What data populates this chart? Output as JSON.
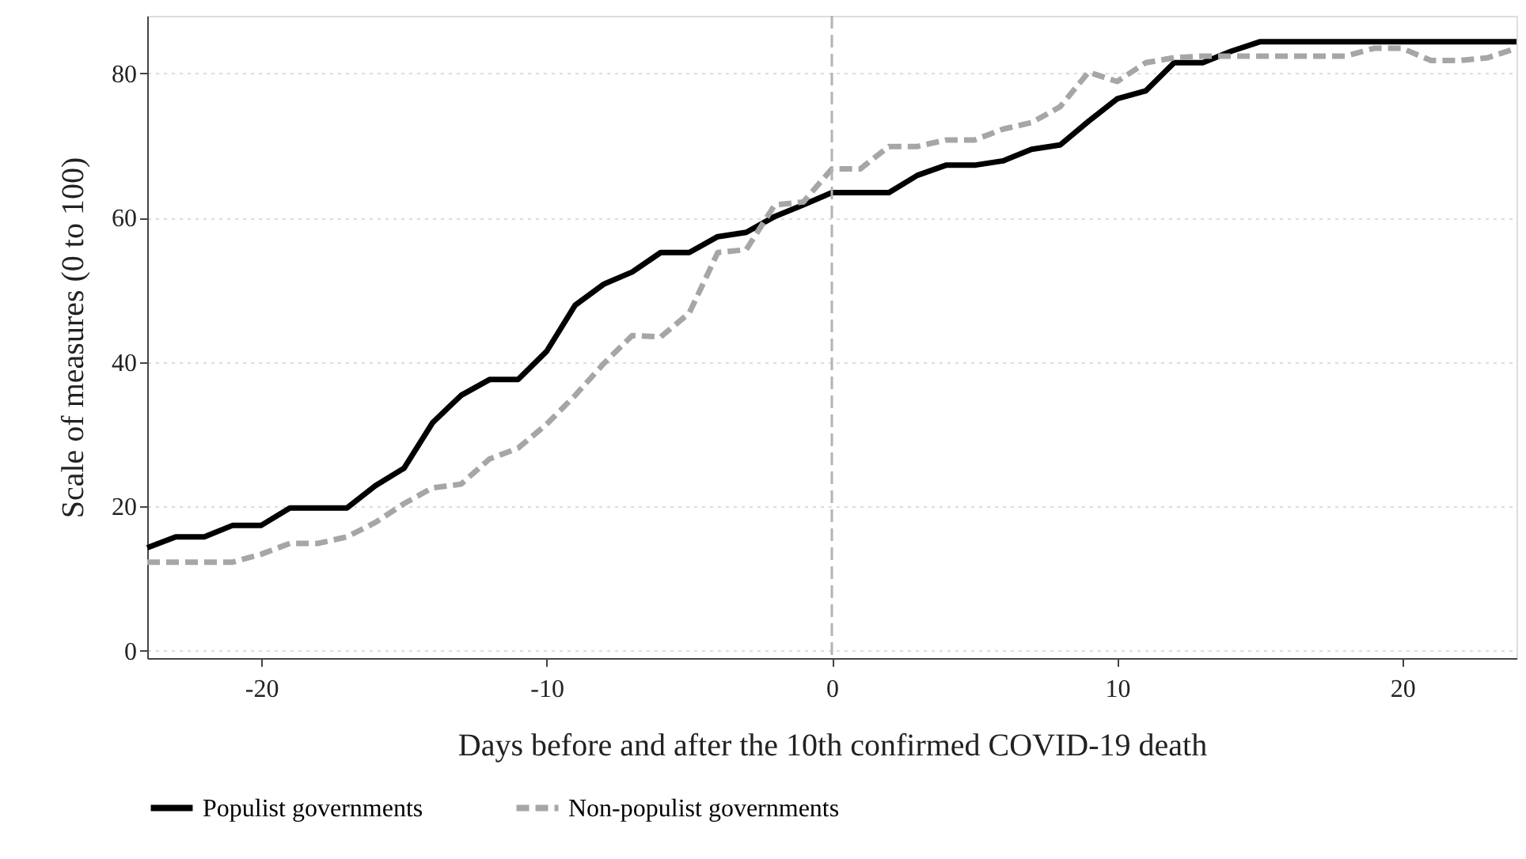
{
  "chart_data": {
    "type": "line",
    "xlabel": "Days before and after the 10th confirmed COVID-19 death",
    "ylabel": "Scale of measures (0 to 100)",
    "x": [
      -24,
      -23,
      -22,
      -21,
      -20,
      -19,
      -18,
      -17,
      -16,
      -15,
      -14,
      -13,
      -12,
      -11,
      -10,
      -9,
      -8,
      -7,
      -6,
      -5,
      -4,
      -3,
      -2,
      -1,
      0,
      1,
      2,
      3,
      4,
      5,
      6,
      7,
      8,
      9,
      10,
      11,
      12,
      13,
      14,
      15,
      16,
      17,
      18,
      19,
      20,
      21,
      22,
      23,
      24
    ],
    "series": [
      {
        "name": "Populist governments",
        "color": "#000000",
        "line_style": "solid",
        "values": [
          14.3,
          15.8,
          15.8,
          17.4,
          17.4,
          19.8,
          19.8,
          19.8,
          22.9,
          25.3,
          31.6,
          35.4,
          37.6,
          37.6,
          41.5,
          47.9,
          50.8,
          52.5,
          55.2,
          55.2,
          57.4,
          58,
          60.2,
          61.8,
          63.5,
          63.5,
          63.5,
          65.9,
          67.3,
          67.3,
          67.9,
          69.5,
          70.1,
          73.4,
          76.5,
          77.6,
          81.5,
          81.5,
          83.1,
          84.4,
          84.4,
          84.4,
          84.4,
          84.4,
          84.4,
          84.4,
          84.4,
          84.4,
          84.4
        ]
      },
      {
        "name": "Non-populist governments",
        "color": "#a6a6a6",
        "line_style": "dashed",
        "values": [
          12.3,
          12.3,
          12.3,
          12.3,
          13.4,
          14.9,
          14.9,
          15.8,
          17.8,
          20.4,
          22.6,
          23.1,
          26.6,
          28.1,
          31.4,
          35.4,
          39.8,
          43.7,
          43.5,
          46.8,
          55.2,
          55.6,
          61.8,
          62.2,
          66.8,
          66.8,
          69.9,
          69.9,
          70.8,
          70.8,
          72.3,
          73.2,
          75.4,
          80.2,
          78.9,
          81.5,
          82.2,
          82.4,
          82.4,
          82.4,
          82.4,
          82.4,
          82.4,
          83.5,
          83.5,
          81.8,
          81.8,
          82.2,
          83.5
        ]
      }
    ],
    "xlim": [
      -24,
      24
    ],
    "xticks": [
      -20,
      -10,
      0,
      10,
      20
    ],
    "ylim": [
      -1,
      88
    ],
    "yticks": [
      0,
      20,
      40,
      60,
      80
    ],
    "grid": "y",
    "legend": "bottom",
    "ref_lines": [
      {
        "axis": "x",
        "value": 0,
        "color": "#b3b3b3",
        "line_style": "dashed"
      }
    ]
  }
}
